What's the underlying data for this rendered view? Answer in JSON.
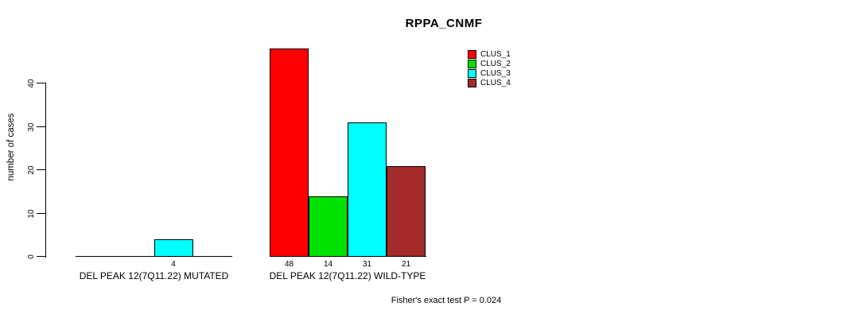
{
  "chart_data": {
    "type": "bar",
    "title": "RPPA_CNMF",
    "xlabel": "",
    "ylabel": "number of cases",
    "annotation": "Fisher's exact test P = 0.024",
    "yticks": [
      0,
      10,
      20,
      30,
      40
    ],
    "ylim": [
      0,
      48
    ],
    "grid": false,
    "legend_position": "top-right",
    "categories": [
      "DEL PEAK 12(7Q11.22) MUTATED",
      "DEL PEAK 12(7Q11.22) WILD-TYPE"
    ],
    "series": [
      {
        "name": "CLUS_1",
        "color": "#FF0000",
        "values": [
          0,
          48
        ]
      },
      {
        "name": "CLUS_2",
        "color": "#00E100",
        "values": [
          0,
          14
        ]
      },
      {
        "name": "CLUS_3",
        "color": "#00FFFF",
        "values": [
          4,
          31
        ]
      },
      {
        "name": "CLUS_4",
        "color": "#A52A2A",
        "values": [
          0,
          21
        ]
      }
    ],
    "bar_value_labels": {
      "shown_when": "value > 0",
      "values_shown": [
        "4",
        "48",
        "14",
        "31",
        "21"
      ]
    }
  }
}
